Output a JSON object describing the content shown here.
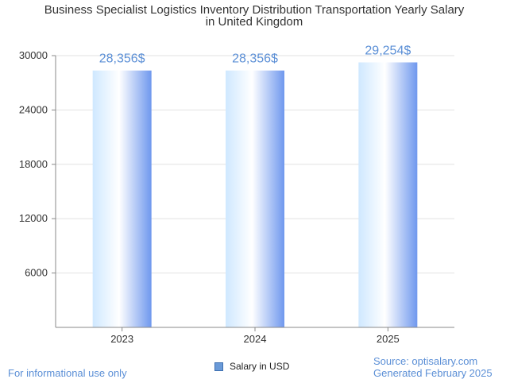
{
  "chart_data": {
    "type": "bar",
    "title_lines": [
      "Business Specialist Logistics Inventory Distribution Transportation Yearly Salary",
      "in United Kingdom"
    ],
    "categories": [
      "2023",
      "2024",
      "2025"
    ],
    "series": [
      {
        "name": "Salary in USD",
        "values": [
          28356,
          28356,
          29254
        ],
        "labels": [
          "28,356$",
          "28,356$",
          "29,254$"
        ]
      }
    ],
    "ylim": [
      0,
      30000
    ],
    "yticks": [
      6000,
      12000,
      18000,
      24000,
      30000
    ],
    "ytick_labels": [
      "6000",
      "12000",
      "18000",
      "24000",
      "30000"
    ],
    "grid": true,
    "legend_position": "bottom"
  },
  "footer": {
    "left_note": "For informational use only",
    "source": "Source: optisalary.com",
    "generated": "Generated February 2025"
  },
  "colors": {
    "bar_light": "#cfe8ff",
    "bar_mid": "#ffffff",
    "bar_dark": "#6f98ee",
    "value_label": "#5b8fd6",
    "footer_text": "#5b8fd6",
    "grid": "#e2e2e2",
    "axis": "#888888",
    "legend_swatch": "#6a9ad8"
  }
}
